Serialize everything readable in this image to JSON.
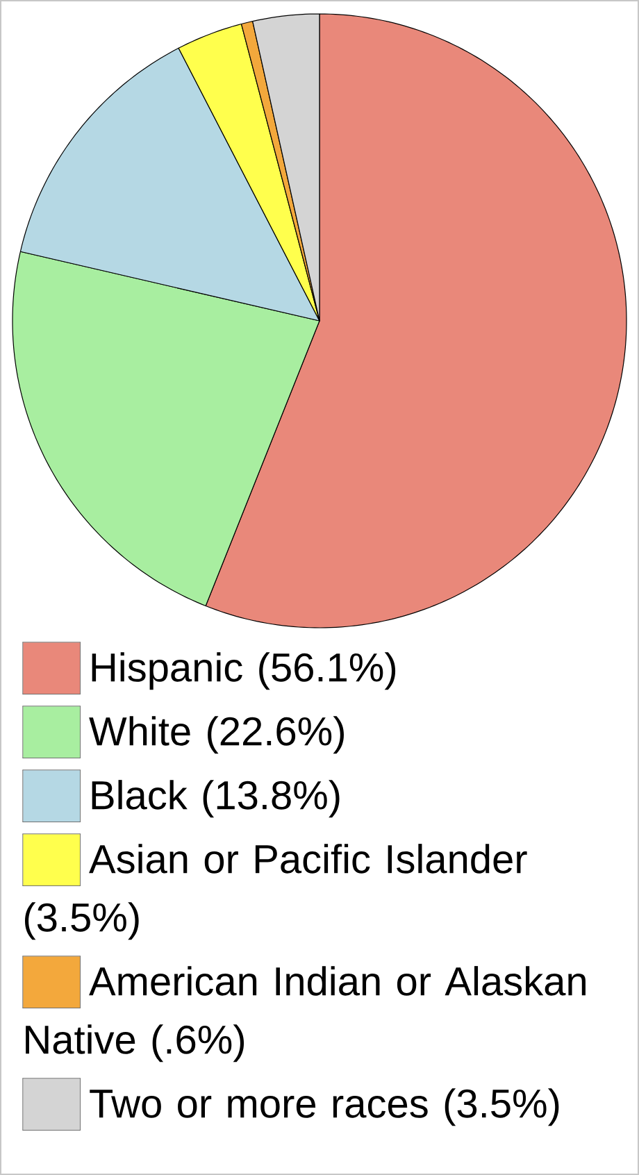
{
  "chart_data": {
    "type": "pie",
    "categories": [
      "Hispanic (56.1%)",
      "White (22.6%)",
      "Black (13.8%)",
      "Asian or Pacific Islander (3.5%)",
      "American Indian or Alaskan Native (.6%)",
      "Two or more races (3.5%)"
    ],
    "values": [
      56.1,
      22.6,
      13.8,
      3.5,
      0.6,
      3.5
    ],
    "colors": [
      "#e9887a",
      "#a8eea0",
      "#b5d8e4",
      "#ffff4d",
      "#f3a83c",
      "#d4d4d4"
    ],
    "legend": "bottom"
  }
}
